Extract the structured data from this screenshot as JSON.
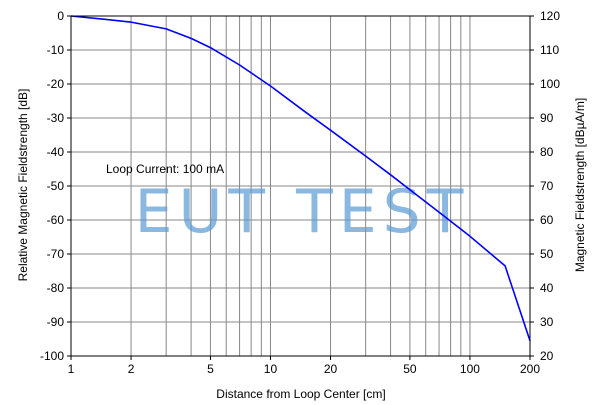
{
  "chart_data": {
    "type": "line",
    "x_scale": "log",
    "xlabel": "Distance from Loop Center [cm]",
    "ylabel_left": "Relative Magnetic Fieldstrength [dB]",
    "ylabel_right": "Magnetic Fieldstrength [dBµA/m]",
    "xlim": [
      1,
      200
    ],
    "ylim_left": [
      -100,
      0
    ],
    "ylim_right": [
      20,
      120
    ],
    "x_ticks": [
      1,
      2,
      5,
      10,
      20,
      50,
      100,
      200
    ],
    "x_tick_labels": [
      "1",
      "2",
      "5",
      "10",
      "20",
      "50",
      "100",
      "200"
    ],
    "x_gridlines": [
      1,
      2,
      3,
      4,
      5,
      6,
      7,
      8,
      9,
      10,
      20,
      30,
      40,
      50,
      60,
      70,
      80,
      90,
      100,
      200
    ],
    "y_ticks_left": [
      0,
      -10,
      -20,
      -30,
      -40,
      -50,
      -60,
      -70,
      -80,
      -90,
      -100
    ],
    "y_ticks_right": [
      120,
      110,
      100,
      90,
      80,
      70,
      60,
      50,
      40,
      30,
      20
    ],
    "grid": true,
    "line_color": "#0000ff",
    "annotation": "Loop Current: 100 mA",
    "watermark": "EUT TEST",
    "series": [
      {
        "x": [
          1,
          1.5,
          2,
          3,
          4,
          5,
          7,
          10,
          15,
          20,
          30,
          40,
          50,
          70,
          100,
          150,
          200
        ],
        "y": [
          0,
          -1,
          -1.8,
          -3.8,
          -6.6,
          -9.3,
          -14.4,
          -20.6,
          -28.3,
          -33.6,
          -41.2,
          -46.7,
          -51.1,
          -57.7,
          -64.8,
          -73.5,
          -95.5
        ]
      }
    ]
  }
}
